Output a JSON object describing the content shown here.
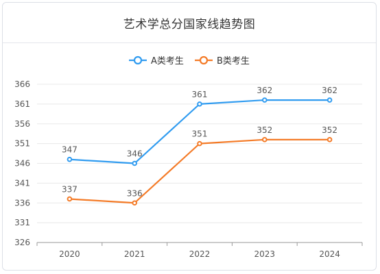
{
  "title": "艺术学总分国家线趋势图",
  "colors": {
    "seriesA": "#2f9bf0",
    "seriesB": "#f47a26",
    "grid": "#e8e8e8",
    "axis": "#999999"
  },
  "chart_data": {
    "type": "line",
    "title": "艺术学总分国家线趋势图",
    "categories": [
      "2020",
      "2021",
      "2022",
      "2023",
      "2024"
    ],
    "series": [
      {
        "name": "A类考生",
        "values": [
          347,
          346,
          361,
          362,
          362
        ]
      },
      {
        "name": "B类考生",
        "values": [
          337,
          336,
          351,
          352,
          352
        ]
      }
    ],
    "yticks": [
      326,
      331,
      336,
      341,
      346,
      351,
      356,
      361,
      366
    ],
    "ylim": [
      326,
      366
    ],
    "grid": true,
    "legend": "top-center",
    "data_labels": true
  }
}
